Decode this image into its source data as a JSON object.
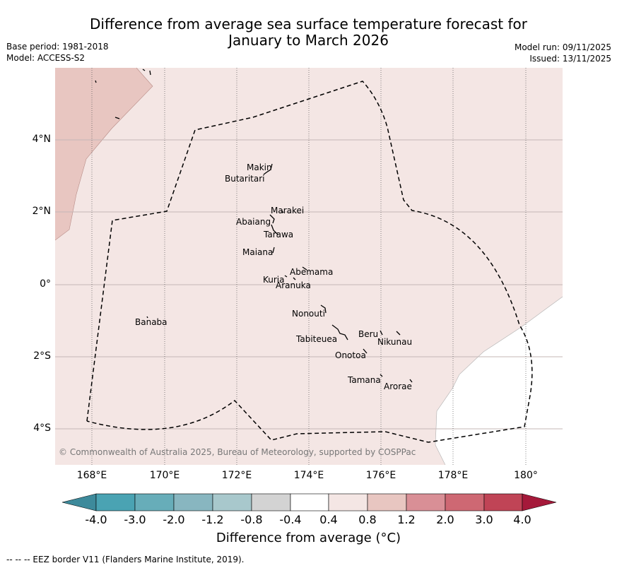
{
  "title": {
    "line1": "Difference from average sea surface temperature forecast for",
    "line2": "January to March 2026"
  },
  "meta": {
    "base_period": "Base period: 1981-2018",
    "model": "Model: ACCESS-S2",
    "model_run": "Model run: 09/11/2025",
    "issued": "Issued: 13/11/2025"
  },
  "axes": {
    "lat_labels": [
      "4°N",
      "2°N",
      "0°",
      "2°S",
      "4°S"
    ],
    "lon_labels": [
      "168°E",
      "170°E",
      "172°E",
      "174°E",
      "176°E",
      "178°E",
      "180°"
    ]
  },
  "copyright": "© Commonwealth of Australia 2025, Bureau of Meteorology, supported by COSPPac",
  "islands": [
    "Makin",
    "Butaritari",
    "Marakei",
    "Abaiang",
    "Tarawa",
    "Maiana",
    "Abemama",
    "Kuria",
    "Aranuka",
    "Nonouti",
    "Banaba",
    "Tabiteuea",
    "Beru",
    "Nikunau",
    "Onotoa",
    "Tamana",
    "Arorae"
  ],
  "colorbar": {
    "label": "Difference from average (°C)",
    "ticks": [
      "-4.0",
      "-3.0",
      "-2.0",
      "-1.2",
      "-0.8",
      "-0.4",
      "0.4",
      "0.8",
      "1.2",
      "2.0",
      "3.0",
      "4.0"
    ],
    "colors": [
      "#3d8a9b",
      "#4aa3b3",
      "#67adb9",
      "#88b6c0",
      "#a8c8cc",
      "#d3d3d3",
      "#ffffff",
      "#f4e6e4",
      "#e8c6c1",
      "#d98f96",
      "#ce6873",
      "#c04456",
      "#a5193a"
    ]
  },
  "footer": "--  --  -- EEZ border V11 (Flanders Marine Institute, 2019)."
}
